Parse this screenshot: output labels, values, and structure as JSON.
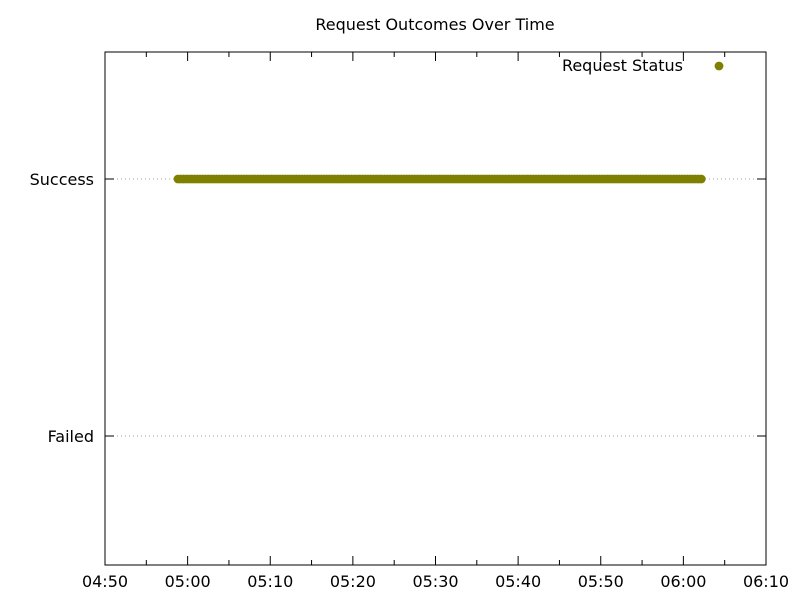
{
  "chart_data": {
    "type": "scatter",
    "title": "Request Outcomes Over Time",
    "xlabel": "",
    "ylabel": "",
    "x_axis": {
      "type": "time",
      "range": [
        "04:50",
        "06:10"
      ],
      "ticks": [
        "04:50",
        "05:00",
        "05:10",
        "05:20",
        "05:30",
        "05:40",
        "05:50",
        "06:00",
        "06:10"
      ]
    },
    "y_axis": {
      "type": "category",
      "categories": [
        "Success",
        "Failed"
      ]
    },
    "grid": {
      "x": false,
      "y": true,
      "style": "dotted"
    },
    "legend": {
      "position": "top-right",
      "entries": [
        "Request Status"
      ]
    },
    "series": [
      {
        "name": "Request Status",
        "color": "#808000",
        "marker": "circle",
        "points_summary": "Dense sequence of Success points at roughly 20-second intervals",
        "x_start": "04:58:50",
        "x_end": "06:02:10",
        "x_step_seconds": 20,
        "y": "Success"
      }
    ]
  }
}
